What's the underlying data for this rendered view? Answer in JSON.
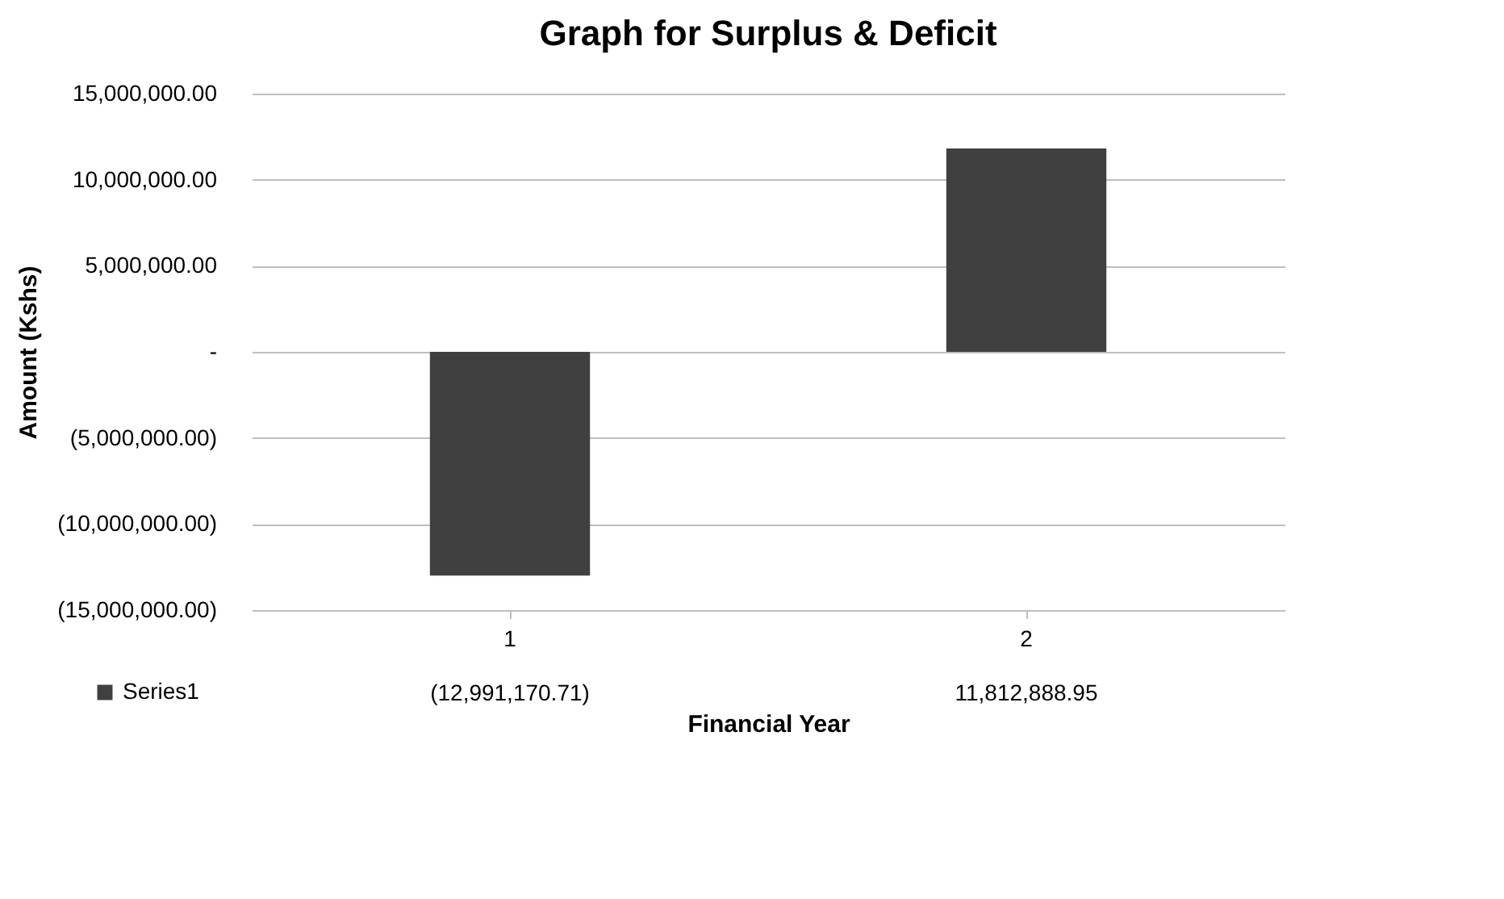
{
  "chart_data": {
    "type": "bar",
    "title": "Graph for Surplus & Deficit",
    "xlabel": "Financial Year",
    "ylabel": "Amount (Kshs)",
    "categories": [
      "1",
      "2"
    ],
    "series": [
      {
        "name": "Series1",
        "color": "#404040",
        "values": [
          -12991170.71,
          11812888.95
        ],
        "value_labels": [
          "(12,991,170.71)",
          "11,812,888.95"
        ]
      }
    ],
    "ylim": [
      -15000000,
      15000000
    ],
    "yticks": [
      {
        "value": -15000000,
        "label": "(15,000,000.00)"
      },
      {
        "value": -10000000,
        "label": "(10,000,000.00)"
      },
      {
        "value": -5000000,
        "label": "(5,000,000.00)"
      },
      {
        "value": 0,
        "label": "-"
      },
      {
        "value": 5000000,
        "label": "5,000,000.00"
      },
      {
        "value": 10000000,
        "label": "10,000,000.00"
      },
      {
        "value": 15000000,
        "label": "15,000,000.00"
      }
    ],
    "grid": "y",
    "legend": "bottom left"
  }
}
